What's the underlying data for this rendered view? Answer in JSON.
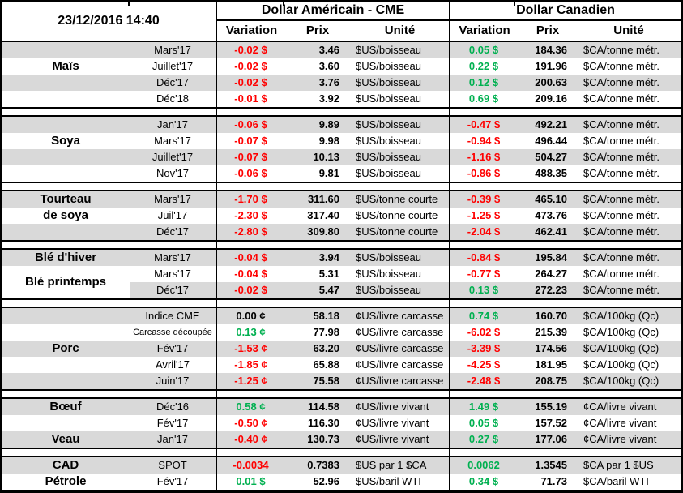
{
  "title_datetime": "23/12/2016 14:40",
  "groups": {
    "us": "Dollar Américain - CME",
    "ca": "Dollar Canadien"
  },
  "columns": {
    "variation": "Variation",
    "prix": "Prix",
    "unite": "Unité"
  },
  "colors": {
    "positive": "#00B050",
    "negative": "#FF0000",
    "neutral": "#000000",
    "stripe": "#D9D9D9",
    "border": "#000000"
  },
  "sections": [
    {
      "name": "mais",
      "rows": [
        {
          "label": "",
          "month": "Mars'17",
          "us_var": "-0.02 $",
          "us_prix": "3.46",
          "us_unit": "$US/boisseau",
          "ca_var": "0.05 $",
          "ca_prix": "184.36",
          "ca_unit": "$CA/tonne métr."
        },
        {
          "label": "Maïs",
          "month": "Juillet'17",
          "us_var": "-0.02 $",
          "us_prix": "3.60",
          "us_unit": "$US/boisseau",
          "ca_var": "0.22 $",
          "ca_prix": "191.96",
          "ca_unit": "$CA/tonne métr."
        },
        {
          "label": "",
          "month": "Déc'17",
          "us_var": "-0.02 $",
          "us_prix": "3.76",
          "us_unit": "$US/boisseau",
          "ca_var": "0.12 $",
          "ca_prix": "200.63",
          "ca_unit": "$CA/tonne métr."
        },
        {
          "label": "",
          "month": "Déc'18",
          "us_var": "-0.01 $",
          "us_prix": "3.92",
          "us_unit": "$US/boisseau",
          "ca_var": "0.69 $",
          "ca_prix": "209.16",
          "ca_unit": "$CA/tonne métr."
        }
      ]
    },
    {
      "name": "soya",
      "rows": [
        {
          "label": "",
          "month": "Jan'17",
          "us_var": "-0.06 $",
          "us_prix": "9.89",
          "us_unit": "$US/boisseau",
          "ca_var": "-0.47 $",
          "ca_prix": "492.21",
          "ca_unit": "$CA/tonne métr."
        },
        {
          "label": "Soya",
          "month": "Mars'17",
          "us_var": "-0.07 $",
          "us_prix": "9.98",
          "us_unit": "$US/boisseau",
          "ca_var": "-0.94 $",
          "ca_prix": "496.44",
          "ca_unit": "$CA/tonne métr."
        },
        {
          "label": "",
          "month": "Juillet'17",
          "us_var": "-0.07 $",
          "us_prix": "10.13",
          "us_unit": "$US/boisseau",
          "ca_var": "-1.16 $",
          "ca_prix": "504.27",
          "ca_unit": "$CA/tonne métr."
        },
        {
          "label": "",
          "month": "Nov'17",
          "us_var": "-0.06 $",
          "us_prix": "9.81",
          "us_unit": "$US/boisseau",
          "ca_var": "-0.86 $",
          "ca_prix": "488.35",
          "ca_unit": "$CA/tonne métr."
        }
      ]
    },
    {
      "name": "tourteau",
      "rows": [
        {
          "label": "Tourteau",
          "month": "Mars'17",
          "us_var": "-1.70 $",
          "us_prix": "311.60",
          "us_unit": "$US/tonne courte",
          "ca_var": "-0.39 $",
          "ca_prix": "465.10",
          "ca_unit": "$CA/tonne métr."
        },
        {
          "label": "de soya",
          "month": "Juil'17",
          "us_var": "-2.30 $",
          "us_prix": "317.40",
          "us_unit": "$US/tonne courte",
          "ca_var": "-1.25 $",
          "ca_prix": "473.76",
          "ca_unit": "$CA/tonne métr."
        },
        {
          "label": "",
          "month": "Déc'17",
          "us_var": "-2.80 $",
          "us_prix": "309.80",
          "us_unit": "$US/tonne courte",
          "ca_var": "-2.04 $",
          "ca_prix": "462.41",
          "ca_unit": "$CA/tonne métr."
        }
      ]
    },
    {
      "name": "ble",
      "rows": [
        {
          "label": "Blé d'hiver",
          "month": "Mars'17",
          "us_var": "-0.04 $",
          "us_prix": "3.94",
          "us_unit": "$US/boisseau",
          "ca_var": "-0.84 $",
          "ca_prix": "195.84",
          "ca_unit": "$CA/tonne métr."
        },
        {
          "label": "Blé printemps",
          "label_class": "offset",
          "month": "Mars'17",
          "us_var": "-0.04 $",
          "us_prix": "5.31",
          "us_unit": "$US/boisseau",
          "ca_var": "-0.77 $",
          "ca_prix": "264.27",
          "ca_unit": "$CA/tonne métr."
        },
        {
          "label": "",
          "label_class": "cover",
          "month": "Déc'17",
          "us_var": "-0.02 $",
          "us_prix": "5.47",
          "us_unit": "$US/boisseau",
          "ca_var": "0.13 $",
          "ca_prix": "272.23",
          "ca_unit": "$CA/tonne métr."
        }
      ]
    },
    {
      "name": "porc",
      "rows": [
        {
          "label": "",
          "month": "Indice CME",
          "us_var": "0.00 ¢",
          "us_prix": "58.18",
          "us_unit": "¢US/livre carcasse",
          "ca_var": "0.74 $",
          "ca_prix": "160.70",
          "ca_unit": "$CA/100kg (Qc)"
        },
        {
          "label": "",
          "month": "Carcasse découpée",
          "us_var": "0.13 ¢",
          "us_prix": "77.98",
          "us_unit": "¢US/livre carcasse",
          "ca_var": "-6.02 $",
          "ca_prix": "215.39",
          "ca_unit": "$CA/100kg (Qc)"
        },
        {
          "label": "Porc",
          "month": "Fév'17",
          "us_var": "-1.53 ¢",
          "us_prix": "63.20",
          "us_unit": "¢US/livre carcasse",
          "ca_var": "-3.39 $",
          "ca_prix": "174.56",
          "ca_unit": "$CA/100kg (Qc)"
        },
        {
          "label": "",
          "month": "Avril'17",
          "us_var": "-1.85 ¢",
          "us_prix": "65.88",
          "us_unit": "¢US/livre carcasse",
          "ca_var": "-4.25 $",
          "ca_prix": "181.95",
          "ca_unit": "$CA/100kg (Qc)"
        },
        {
          "label": "",
          "month": "Juin'17",
          "us_var": "-1.25 ¢",
          "us_prix": "75.58",
          "us_unit": "¢US/livre carcasse",
          "ca_var": "-2.48 $",
          "ca_prix": "208.75",
          "ca_unit": "$CA/100kg (Qc)"
        }
      ]
    },
    {
      "name": "boeuf-veau",
      "rows": [
        {
          "label": "Bœuf",
          "month": "Déc'16",
          "us_var": "0.58 ¢",
          "us_prix": "114.58",
          "us_unit": "¢US/livre vivant",
          "ca_var": "1.49 $",
          "ca_prix": "155.19",
          "ca_unit": "¢CA/livre vivant"
        },
        {
          "label": "",
          "month": "Fév'17",
          "us_var": "-0.50 ¢",
          "us_prix": "116.30",
          "us_unit": "¢US/livre vivant",
          "ca_var": "0.05 $",
          "ca_prix": "157.52",
          "ca_unit": "¢CA/livre vivant"
        },
        {
          "label": "Veau",
          "month": "Jan'17",
          "us_var": "-0.40 ¢",
          "us_prix": "130.73",
          "us_unit": "¢US/livre vivant",
          "ca_var": "0.27 $",
          "ca_prix": "177.06",
          "ca_unit": "¢CA/livre vivant"
        }
      ]
    },
    {
      "name": "cad-petrole",
      "rows": [
        {
          "label": "CAD",
          "month": "SPOT",
          "us_var": "-0.0034",
          "us_prix": "0.7383",
          "us_unit": "$US par 1 $CA",
          "ca_var": "0.0062",
          "ca_prix": "1.3545",
          "ca_unit": "$CA par 1 $US"
        },
        {
          "label": "Pétrole",
          "month": "Fév'17",
          "us_var": "0.01 $",
          "us_prix": "52.96",
          "us_unit": "$US/baril WTI",
          "ca_var": "0.34 $",
          "ca_prix": "71.73",
          "ca_unit": "$CA/baril WTI"
        }
      ]
    }
  ]
}
